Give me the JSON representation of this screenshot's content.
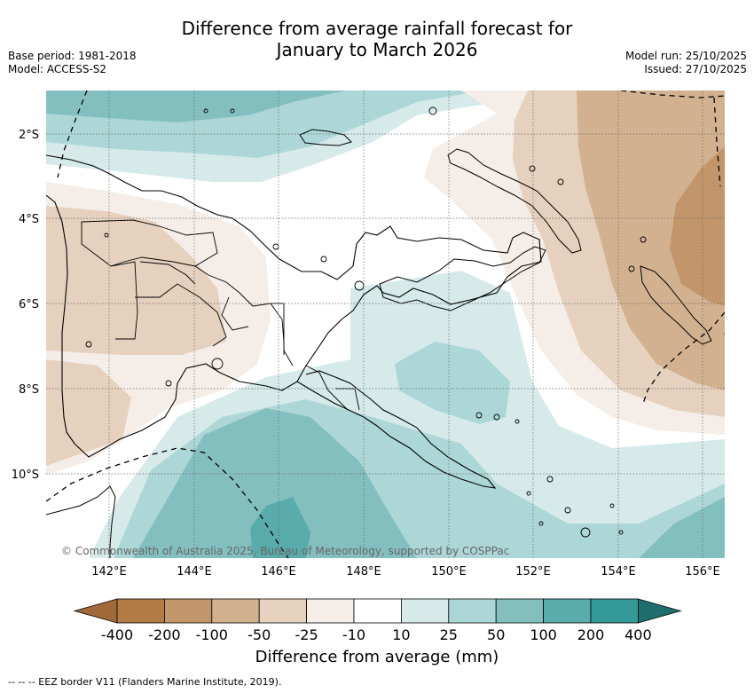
{
  "title": {
    "line1": "Difference from average rainfall forecast for",
    "line2": "January to March 2026"
  },
  "meta_left": {
    "base_period": "Base period: 1981-2018",
    "model": "Model: ACCESS-S2"
  },
  "meta_right": {
    "model_run": "Model run: 25/10/2025",
    "issued": "Issued: 27/10/2025"
  },
  "map": {
    "lon_labels": [
      "142°E",
      "144°E",
      "146°E",
      "148°E",
      "150°E",
      "152°E",
      "154°E",
      "156°E"
    ],
    "lat_labels": [
      "2°S",
      "4°S",
      "6°S",
      "8°S",
      "10°S"
    ],
    "copyright": "© Commonwealth of Australia 2025, Bureau of Meteorology, supported by COSPPac"
  },
  "colorbar": {
    "label": "Difference from average (mm)",
    "ticks": [
      "-400",
      "-200",
      "-100",
      "-50",
      "-25",
      "-10",
      "10",
      "25",
      "50",
      "100",
      "200",
      "400"
    ],
    "colors": [
      "#a1693a",
      "#b27a44",
      "#c2956a",
      "#d2b190",
      "#e6d1be",
      "#f5eee8",
      "#ffffff",
      "#d6eaea",
      "#add7d7",
      "#84bfc0",
      "#5aabab",
      "#339a98",
      "#1f6e6d"
    ]
  },
  "footnote": "-- -- -- EEZ border V11 (Flanders Marine Institute, 2019)."
}
